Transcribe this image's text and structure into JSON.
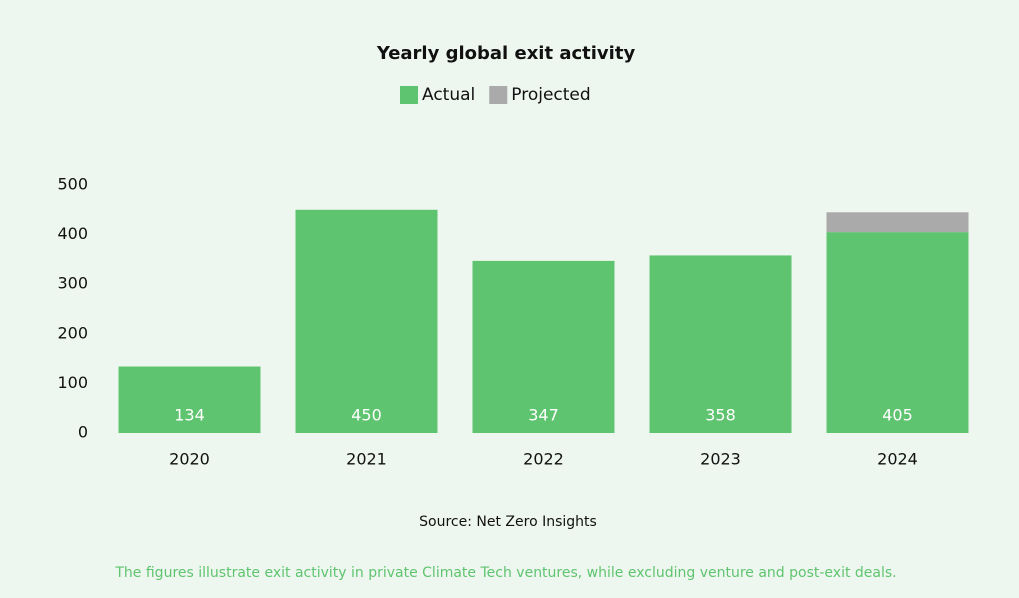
{
  "chart_data": {
    "type": "stacked-bar",
    "title": "Yearly global exit activity",
    "categories": [
      "2020",
      "2021",
      "2022",
      "2023",
      "2024"
    ],
    "series": [
      {
        "name": "Actual",
        "color": "#5ec46f",
        "values": [
          134,
          450,
          347,
          358,
          405
        ]
      },
      {
        "name": "Projected",
        "color": "#aaaaaa",
        "values": [
          null,
          null,
          null,
          null,
          40
        ]
      }
    ],
    "ylim": [
      0,
      500
    ],
    "yticks": [
      0,
      100,
      200,
      300,
      400,
      500
    ],
    "grid": false,
    "legend": "top",
    "source": "Source: Net Zero Insights",
    "footnote": "The figures illustrate exit activity in private Climate Tech ventures, while excluding venture and post-exit deals."
  }
}
